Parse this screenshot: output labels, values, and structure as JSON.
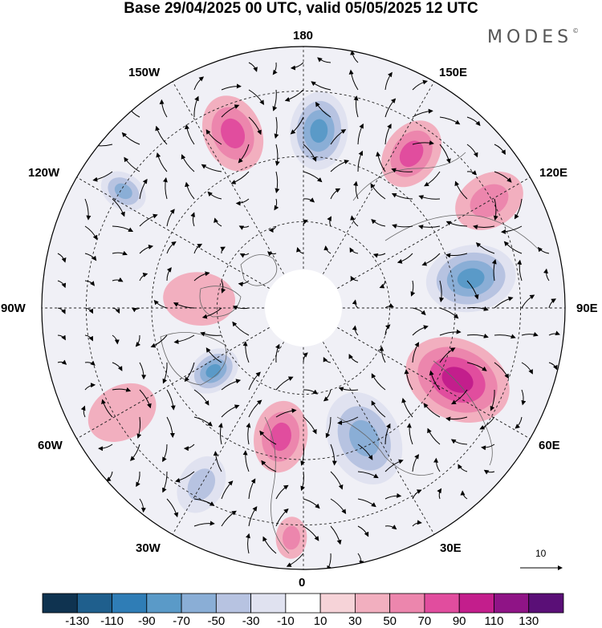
{
  "title": "Base 29/04/2025 00 UTC, valid 05/05/2025 12 UTC",
  "brand": "MODES",
  "brand_mark": "©",
  "longitude_labels": {
    "top": "180",
    "top_left": "150W",
    "top_right": "150E",
    "upper_left": "120W",
    "upper_right": "120E",
    "left": "90W",
    "right": "90E",
    "lower_left": "60W",
    "lower_right": "60E",
    "bottom_left": "30W",
    "bottom_right": "30E",
    "bottom": "0"
  },
  "wind_scale": {
    "value": "10"
  },
  "colorbar": {
    "ticks": [
      "-130",
      "-110",
      "-90",
      "-70",
      "-50",
      "-30",
      "-10",
      "10",
      "30",
      "50",
      "70",
      "90",
      "110",
      "130"
    ],
    "colors": [
      "#0f3350",
      "#1f5f8d",
      "#2f7db6",
      "#5a9ac8",
      "#8aaed6",
      "#b7c3e1",
      "#e0e2f0",
      "#ffffff",
      "#f6d3d8",
      "#f2afbf",
      "#ec86ad",
      "#e14d9e",
      "#c31e8c",
      "#8f1486",
      "#5a0f77"
    ]
  },
  "anomaly_centers": [
    {
      "lon": -158,
      "lat_dist": 0.72,
      "value": 80,
      "r": 0.13
    },
    {
      "lon": 175,
      "lat_dist": 0.68,
      "value": -95,
      "r": 0.13
    },
    {
      "lon": 145,
      "lat_dist": 0.72,
      "value": 80,
      "r": 0.12
    },
    {
      "lon": 120,
      "lat_dist": 0.82,
      "value": 50,
      "r": 0.12
    },
    {
      "lon": -123,
      "lat_dist": 0.82,
      "value": -70,
      "r": 0.08
    },
    {
      "lon": 100,
      "lat_dist": 0.65,
      "value": -95,
      "r": 0.15
    },
    {
      "lon": 65,
      "lat_dist": 0.65,
      "value": 90,
      "r": 0.18
    },
    {
      "lon": 25,
      "lat_dist": 0.55,
      "value": -85,
      "r": 0.16
    },
    {
      "lon": -10,
      "lat_dist": 0.5,
      "value": 70,
      "r": 0.12
    },
    {
      "lon": -55,
      "lat_dist": 0.42,
      "value": -100,
      "r": 0.09
    },
    {
      "lon": -60,
      "lat_dist": 0.8,
      "value": 30,
      "r": 0.12
    },
    {
      "lon": -30,
      "lat_dist": 0.78,
      "value": -55,
      "r": 0.1
    },
    {
      "lon": -3,
      "lat_dist": 0.88,
      "value": 50,
      "r": 0.07
    },
    {
      "lon": -95,
      "lat_dist": 0.4,
      "value": 30,
      "r": 0.12
    }
  ]
}
